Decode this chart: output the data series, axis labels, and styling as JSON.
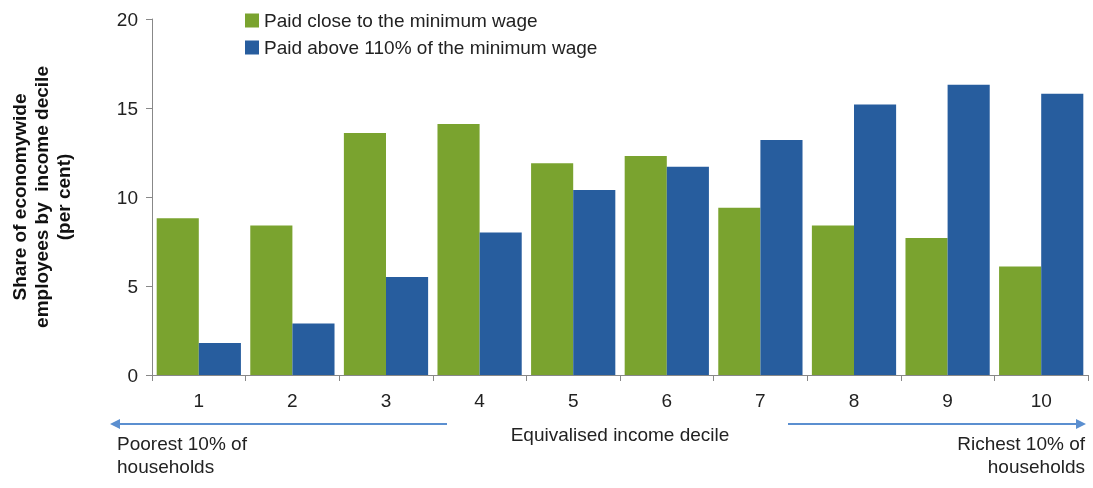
{
  "chart_data": {
    "type": "bar",
    "xlabel": "Equivalised income decile",
    "ylabel": "Share of economywide\nemployees by  income decile\n(per cent)",
    "categories": [
      "1",
      "2",
      "3",
      "4",
      "5",
      "6",
      "7",
      "8",
      "9",
      "10"
    ],
    "series": [
      {
        "name": "Paid close to the minimum wage",
        "color": "#7aa32f",
        "values": [
          8.8,
          8.4,
          13.6,
          14.1,
          11.9,
          12.3,
          9.4,
          8.4,
          7.7,
          6.1
        ]
      },
      {
        "name": "Paid above 110% of the minimum wage",
        "color": "#275d9e",
        "values": [
          1.8,
          2.9,
          5.5,
          8.0,
          10.4,
          11.7,
          13.2,
          15.2,
          16.3,
          15.8
        ]
      }
    ],
    "ylim": [
      0,
      20
    ],
    "yticks": [
      0,
      5,
      10,
      15,
      20
    ],
    "grid": false,
    "legend": "top left",
    "annotations": [
      "Poorest 10% of households",
      "Richest 10% of households"
    ]
  }
}
